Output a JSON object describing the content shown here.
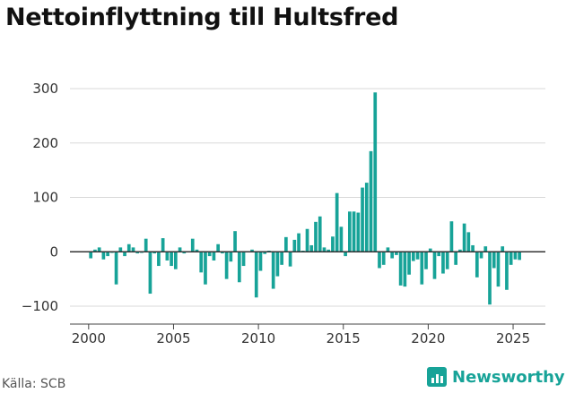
{
  "chart_data": {
    "type": "bar",
    "title": "Nettoinflyttning till Hultsfred",
    "xlabel": "",
    "ylabel": "",
    "ylim": [
      -110,
      310
    ],
    "xlim": [
      1998.9,
      2026.9
    ],
    "yticks": [
      -100,
      0,
      100,
      200,
      300
    ],
    "ytick_labels": [
      "−100",
      "0",
      "100",
      "200",
      "300"
    ],
    "xticks": [
      2000,
      2005,
      2010,
      2015,
      2020,
      2025
    ],
    "grid": "horizontal",
    "bar_color": "#17a398",
    "zero_line_color": "#333333",
    "series": [
      {
        "frequency": "quarterly",
        "start": "2000-Q1",
        "values": [
          -12,
          4,
          8,
          -14,
          -8,
          -2,
          -60,
          8,
          -8,
          14,
          8,
          -3,
          -2,
          24,
          -77,
          -3,
          -26,
          25,
          -16,
          -26,
          -32,
          8,
          -3,
          -1,
          24,
          4,
          -38,
          -60,
          -8,
          -16,
          14,
          -3,
          -50,
          -18,
          38,
          -56,
          -26,
          -1,
          4,
          -84,
          -35,
          -4,
          2,
          -68,
          -45,
          -24,
          27,
          -27,
          22,
          34,
          2,
          42,
          12,
          55,
          65,
          8,
          4,
          28,
          108,
          46,
          -8,
          74,
          74,
          72,
          118,
          127,
          185,
          293,
          -30,
          -24,
          8,
          -12,
          -6,
          -62,
          -64,
          -42,
          -17,
          -14,
          -60,
          -32,
          6,
          -50,
          -8,
          -40,
          -32,
          56,
          -24,
          4,
          52,
          36,
          12,
          -47,
          -12,
          10,
          -97,
          -30,
          -64,
          10,
          -70,
          -24,
          -14,
          -15
        ]
      }
    ]
  },
  "source": "Källa: SCB",
  "brand": {
    "name": "Newsworthy",
    "icon": "bar-chart-logo-icon",
    "color": "#17a398"
  }
}
